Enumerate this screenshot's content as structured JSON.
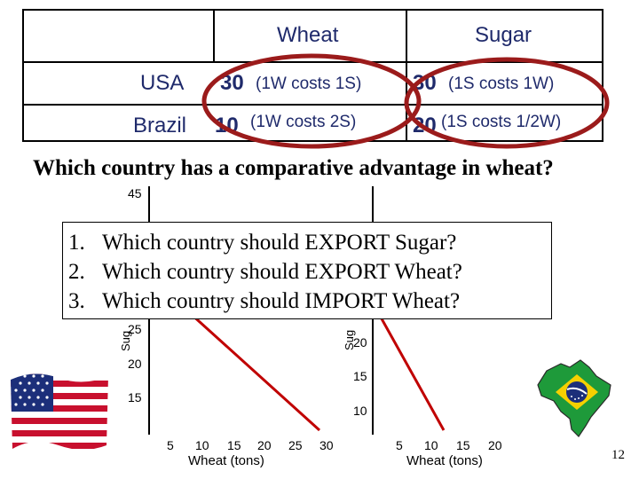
{
  "table": {
    "header_wheat": "Wheat",
    "header_sugar": "Sugar",
    "rows": [
      {
        "country": "USA",
        "wheat_value": "30",
        "wheat_note": "(1W costs 1S)",
        "sugar_value": "30",
        "sugar_note": "(1S costs 1W)"
      },
      {
        "country": "Brazil",
        "wheat_value": "10",
        "wheat_note": "(1W costs 2S)",
        "sugar_value": "20",
        "sugar_note": "(1S costs 1/2W)"
      }
    ]
  },
  "question_main": "Which country has a comparative advantage in wheat?",
  "questions": [
    {
      "num": "1.",
      "text": "Which country should EXPORT Sugar?"
    },
    {
      "num": "2.",
      "text": "Which country should EXPORT Wheat?"
    },
    {
      "num": "3.",
      "text": "Which country should IMPORT Wheat?"
    }
  ],
  "usa_chart": {
    "y_ticks": [
      "45",
      "25",
      "20",
      "15"
    ],
    "x_ticks": [
      "5",
      "10",
      "15",
      "20",
      "25",
      "30"
    ],
    "xlabel": "Wheat (tons)",
    "ylabel_visible": "Sug"
  },
  "brazil_chart": {
    "y_ticks": [
      "20",
      "15",
      "10"
    ],
    "x_ticks": [
      "5",
      "10",
      "15",
      "20"
    ],
    "xlabel": "Wheat (tons)",
    "ylabel_visible": "Sug"
  },
  "page_number": "12",
  "colors": {
    "circle": "#9b1b1b",
    "line": "#c00000",
    "text_navy": "#1f2a6b"
  }
}
